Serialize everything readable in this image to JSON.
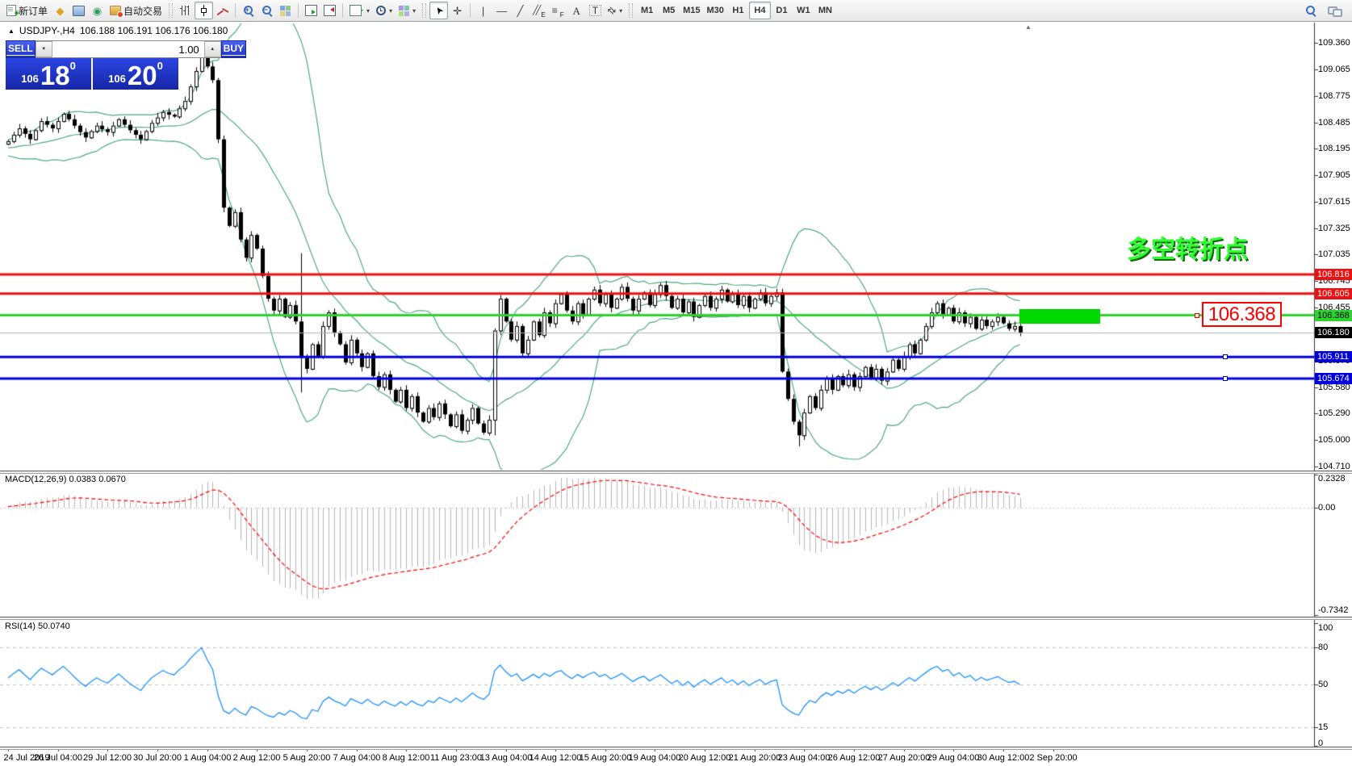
{
  "app": {
    "toolbar": {
      "new_order": "新订单",
      "autotrading": "自动交易",
      "timeframes": [
        "M1",
        "M5",
        "M15",
        "M30",
        "H1",
        "H4",
        "D1",
        "W1",
        "MN"
      ],
      "active_timeframe": "H4",
      "volume_value": "1.00"
    }
  },
  "icons": {
    "metaeditor": "◆",
    "market_watch": "◉",
    "caret": "▾",
    "cursor": "➤",
    "crosshair": "✛",
    "vertical_line": "|",
    "horizontal_line": "—",
    "trendline": "╱",
    "channel": "╱╱",
    "channel_sub": "E",
    "fibo": "≡",
    "fibo_sub": "F",
    "text_tool": "A",
    "label_tool": "T",
    "arrows_tool": "⇄",
    "indicators_plus": "+",
    "zoom_in_sign": "+",
    "zoom_out_sign": "−",
    "spinner_down": "▼",
    "spinner_up": "▲",
    "collapse": "▲",
    "shift_marker": "▲"
  },
  "header": {
    "collapse_arrow": "▲",
    "symbol_info": "USDJPY-,H4",
    "ohlc": "106.188 106.191 106.176 106.180"
  },
  "trade_panel": {
    "sell_label": "SELL",
    "buy_label": "BUY",
    "volume": "1.00",
    "sell_small": "106",
    "sell_big": "18",
    "sell_sup": "0",
    "buy_small": "106",
    "buy_big": "20",
    "buy_sup": "0"
  },
  "annotation": {
    "text": "多空转折点",
    "color": "#2eff2e"
  },
  "callout": {
    "text": "106.368",
    "color": "#ff0000"
  },
  "badges": [
    {
      "text": "106.816",
      "bg": "#ee1111",
      "fg": "#ffffff",
      "price": 106.816
    },
    {
      "text": "106.605",
      "bg": "#ee1111",
      "fg": "#ffffff",
      "price": 106.605
    },
    {
      "text": "106.368",
      "bg": "#2fd32f",
      "fg": "#000000",
      "price": 106.368
    },
    {
      "text": "106.180",
      "bg": "#000000",
      "fg": "#ffffff",
      "price": 106.18
    },
    {
      "text": "105.911",
      "bg": "#0000dd",
      "fg": "#ffffff",
      "price": 105.911
    },
    {
      "text": "105.674",
      "bg": "#0000dd",
      "fg": "#ffffff",
      "price": 105.674
    }
  ],
  "macd_panel": {
    "label": "MACD(12,26,9)",
    "value_main": "0.0383",
    "value_signal": "0.0670",
    "axis_max": "0.2328",
    "axis_zero": "0.00",
    "axis_min": "-0.7342"
  },
  "rsi_panel": {
    "label": "RSI(14)",
    "value": "50.0740",
    "axis": [
      "100",
      "80",
      "50",
      "15",
      "0"
    ],
    "levels": [
      80,
      50,
      15
    ]
  },
  "chart_data": {
    "type": "candlestick",
    "symbol": "USDJPY",
    "period": "H4",
    "ohlc_display": {
      "open": 106.188,
      "high": 106.191,
      "low": 106.176,
      "close": 106.18
    },
    "y_axis_ticks": [
      109.36,
      109.065,
      108.775,
      108.485,
      108.195,
      107.905,
      107.615,
      107.325,
      107.035,
      106.745,
      106.455,
      106.165,
      105.87,
      105.58,
      105.29,
      105.0,
      104.71
    ],
    "x_labels": [
      "24 Jul 2019",
      "26 Jul 04:00",
      "29 Jul 12:00",
      "30 Jul 20:00",
      "1 Aug 04:00",
      "2 Aug 12:00",
      "5 Aug 20:00",
      "7 Aug 04:00",
      "8 Aug 12:00",
      "11 Aug 23:00",
      "13 Aug 04:00",
      "14 Aug 12:00",
      "15 Aug 20:00",
      "19 Aug 04:00",
      "20 Aug 12:00",
      "21 Aug 20:00",
      "23 Aug 04:00",
      "26 Aug 12:00",
      "27 Aug 20:00",
      "29 Aug 04:00",
      "30 Aug 12:00",
      "2 Sep 20:00"
    ],
    "closes": [
      108.28,
      108.35,
      108.42,
      108.36,
      108.3,
      108.4,
      108.5,
      108.46,
      108.42,
      108.5,
      108.58,
      108.52,
      108.45,
      108.38,
      108.32,
      108.39,
      108.45,
      108.41,
      108.38,
      108.45,
      108.52,
      108.46,
      108.4,
      108.35,
      108.3,
      108.39,
      108.48,
      108.54,
      108.6,
      108.57,
      108.55,
      108.64,
      108.72,
      108.88,
      109.05,
      109.25,
      109.1,
      108.95,
      108.3,
      107.55,
      107.35,
      107.5,
      107.2,
      107.0,
      107.25,
      107.1,
      106.8,
      106.55,
      106.42,
      106.55,
      106.35,
      106.48,
      106.3,
      105.9,
      105.78,
      106.05,
      105.92,
      106.25,
      106.4,
      106.18,
      106.05,
      105.85,
      106.1,
      105.95,
      105.8,
      105.95,
      105.7,
      105.58,
      105.72,
      105.55,
      105.42,
      105.55,
      105.35,
      105.48,
      105.3,
      105.2,
      105.35,
      105.25,
      105.4,
      105.28,
      105.15,
      105.28,
      105.1,
      105.22,
      105.35,
      105.18,
      105.08,
      105.22,
      106.2,
      106.55,
      106.3,
      106.1,
      106.25,
      105.95,
      106.1,
      106.3,
      106.15,
      106.4,
      106.28,
      106.5,
      106.6,
      106.42,
      106.3,
      106.5,
      106.38,
      106.55,
      106.65,
      106.5,
      106.6,
      106.45,
      106.55,
      106.68,
      106.55,
      106.42,
      106.55,
      106.62,
      106.48,
      106.6,
      106.7,
      106.58,
      106.45,
      106.55,
      106.4,
      106.52,
      106.35,
      106.48,
      106.58,
      106.45,
      106.55,
      106.65,
      106.52,
      106.6,
      106.48,
      106.58,
      106.45,
      106.55,
      106.62,
      106.5,
      106.58,
      106.62,
      105.75,
      105.45,
      105.2,
      105.05,
      105.3,
      105.48,
      105.35,
      105.55,
      105.68,
      105.55,
      105.7,
      105.6,
      105.72,
      105.58,
      105.7,
      105.8,
      105.68,
      105.78,
      105.65,
      105.75,
      105.88,
      105.78,
      105.92,
      106.05,
      105.95,
      106.1,
      106.25,
      106.4,
      106.5,
      106.38,
      106.45,
      106.3,
      106.4,
      106.28,
      106.35,
      106.22,
      106.32,
      106.25,
      106.3,
      106.35,
      106.28,
      106.22,
      106.25,
      106.18
    ],
    "special_bars": {
      "35": {
        "h": 109.33
      },
      "53": {
        "h": 107.05,
        "l": 105.52
      },
      "88": {
        "l": 105.05
      },
      "140": {
        "h": 106.66
      },
      "143": {
        "l": 104.93
      }
    },
    "horizontal_lines": [
      {
        "price": 106.816,
        "color": "#ee1111"
      },
      {
        "price": 106.605,
        "color": "#ee1111"
      },
      {
        "price": 106.368,
        "color": "#2fd32f"
      },
      {
        "price": 105.911,
        "color": "#0000e0"
      },
      {
        "price": 105.674,
        "color": "#0000e0"
      }
    ],
    "current_price": 106.18,
    "indicators": [
      {
        "name": "Bollinger Bands",
        "period": 20,
        "deviation": 2,
        "color": "#4fa97e"
      },
      {
        "name": "MACD",
        "fast": 12,
        "slow": 26,
        "signal": 9,
        "values": [
          0.0383,
          0.067
        ],
        "range": [
          -0.7342,
          0.2328
        ]
      },
      {
        "name": "RSI",
        "period": 14,
        "value": 50.074,
        "levels": [
          80,
          50,
          15
        ],
        "color": "#1e90ff"
      }
    ]
  }
}
